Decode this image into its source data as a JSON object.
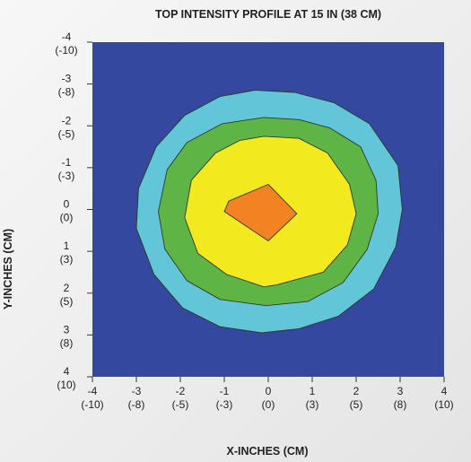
{
  "chart_data": {
    "type": "heatmap",
    "title": "TOP INTENSITY PROFILE AT 15 IN (38 CM)",
    "xlabel": "X-INCHES (CM)",
    "ylabel": "Y-INCHES (CM)",
    "xlim": [
      -4,
      4
    ],
    "ylim": [
      -4,
      4
    ],
    "y_axis_inverted": true,
    "grid": false,
    "legend": "none",
    "x_ticks": [
      {
        "value": -4,
        "label": "-4",
        "sublabel": "(-10)"
      },
      {
        "value": -3,
        "label": "-3",
        "sublabel": "(-8)"
      },
      {
        "value": -2,
        "label": "-2",
        "sublabel": "(-5)"
      },
      {
        "value": -1,
        "label": "-1",
        "sublabel": "(-3)"
      },
      {
        "value": 0,
        "label": "0",
        "sublabel": "(0)"
      },
      {
        "value": 1,
        "label": "1",
        "sublabel": "(3)"
      },
      {
        "value": 2,
        "label": "2",
        "sublabel": "(5)"
      },
      {
        "value": 3,
        "label": "3",
        "sublabel": "(8)"
      },
      {
        "value": 4,
        "label": "4",
        "sublabel": "(10)"
      }
    ],
    "y_ticks": [
      {
        "value": -4,
        "label": "-4",
        "sublabel": "(-10)"
      },
      {
        "value": -3,
        "label": "-3",
        "sublabel": "(-8)"
      },
      {
        "value": -2,
        "label": "-2",
        "sublabel": "(-5)"
      },
      {
        "value": -1,
        "label": "-1",
        "sublabel": "(-3)"
      },
      {
        "value": 0,
        "label": "0",
        "sublabel": "(0)"
      },
      {
        "value": 1,
        "label": "1",
        "sublabel": "(3)"
      },
      {
        "value": 2,
        "label": "2",
        "sublabel": "(5)"
      },
      {
        "value": 3,
        "label": "3",
        "sublabel": "(8)"
      },
      {
        "value": 4,
        "label": "4",
        "sublabel": "(10)"
      }
    ],
    "background_color": "#3548a0",
    "contours": [
      {
        "level": 1,
        "color": "#62c6d8",
        "points": [
          [
            -0.3,
            -2.85
          ],
          [
            0.6,
            -2.8
          ],
          [
            1.5,
            -2.55
          ],
          [
            2.3,
            -2.05
          ],
          [
            2.95,
            -1.05
          ],
          [
            3.05,
            0
          ],
          [
            2.9,
            0.9
          ],
          [
            2.4,
            1.9
          ],
          [
            1.6,
            2.55
          ],
          [
            0.7,
            2.85
          ],
          [
            -0.15,
            2.95
          ],
          [
            -1.1,
            2.8
          ],
          [
            -1.95,
            2.35
          ],
          [
            -2.6,
            1.55
          ],
          [
            -3.0,
            0.45
          ],
          [
            -2.95,
            -0.5
          ],
          [
            -2.55,
            -1.5
          ],
          [
            -1.9,
            -2.25
          ],
          [
            -1.1,
            -2.7
          ]
        ]
      },
      {
        "level": 2,
        "color": "#5fb446",
        "points": [
          [
            -0.1,
            -2.2
          ],
          [
            0.7,
            -2.15
          ],
          [
            1.4,
            -1.95
          ],
          [
            2.1,
            -1.5
          ],
          [
            2.45,
            -0.7
          ],
          [
            2.5,
            0.1
          ],
          [
            2.25,
            0.95
          ],
          [
            1.7,
            1.75
          ],
          [
            0.9,
            2.2
          ],
          [
            -0.05,
            2.3
          ],
          [
            -1.1,
            2.15
          ],
          [
            -1.85,
            1.7
          ],
          [
            -2.35,
            0.95
          ],
          [
            -2.5,
            0.05
          ],
          [
            -2.3,
            -0.95
          ],
          [
            -1.85,
            -1.6
          ],
          [
            -1.05,
            -2.05
          ]
        ]
      },
      {
        "level": 3,
        "color": "#f2ea1e",
        "points": [
          [
            -0.1,
            -1.75
          ],
          [
            0.7,
            -1.7
          ],
          [
            1.35,
            -1.35
          ],
          [
            1.85,
            -0.6
          ],
          [
            2.0,
            0.1
          ],
          [
            1.8,
            0.85
          ],
          [
            1.25,
            1.5
          ],
          [
            0.2,
            1.8
          ],
          [
            -0.1,
            1.85
          ],
          [
            -0.95,
            1.55
          ],
          [
            -1.6,
            1.05
          ],
          [
            -1.9,
            0.2
          ],
          [
            -1.75,
            -0.7
          ],
          [
            -1.2,
            -1.35
          ],
          [
            -0.65,
            -1.65
          ]
        ]
      },
      {
        "level": 4,
        "color": "#f38322",
        "points": [
          [
            -1.0,
            0.05
          ],
          [
            -0.9,
            -0.2
          ],
          [
            0.0,
            -0.6
          ],
          [
            0.65,
            0.1
          ],
          [
            0.0,
            0.75
          ]
        ]
      }
    ]
  }
}
